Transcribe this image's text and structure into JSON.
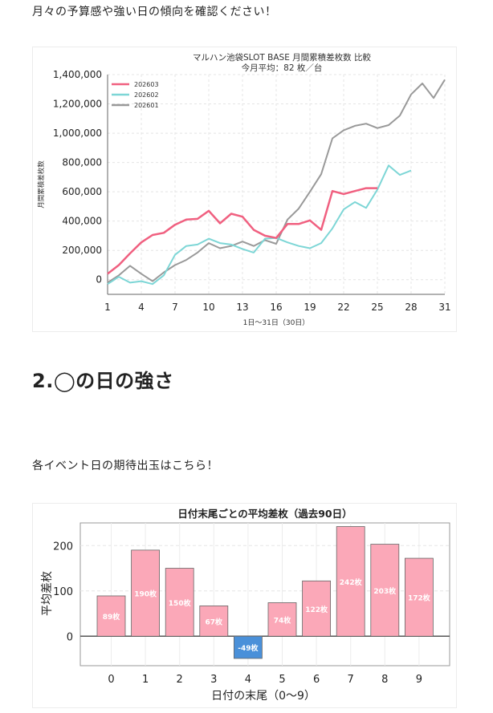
{
  "intro_text": "月々の予算感や強い日の傾向を確認ください！",
  "section_heading": "2.◯の日の強さ",
  "intro2_text": "各イベント日の期待出玉はこちら！",
  "chart_data": [
    {
      "type": "line",
      "title": "マルハン池袋SLOT BASE 月間累積差枚数 比較",
      "subtitle": "今月平均：82 枚／台",
      "xlabel": "1日〜31日（30日）",
      "ylabel": "月間累積差枚数",
      "xlim": [
        1,
        31
      ],
      "ylim": [
        -100000,
        1400000
      ],
      "xticks": [
        "1",
        "4",
        "7",
        "10",
        "13",
        "16",
        "19",
        "22",
        "25",
        "28",
        "31"
      ],
      "yticks": [
        "1,400,000",
        "1,200,000",
        "1,000,000",
        "800,000",
        "600,000",
        "400,000",
        "200,000",
        "0"
      ],
      "legend_position": "top-left",
      "grid": true,
      "series": [
        {
          "name": "202603",
          "color": "#f06080",
          "x": [
            1,
            2,
            3,
            4,
            5,
            6,
            7,
            8,
            9,
            10,
            11,
            12,
            13,
            14,
            15,
            16,
            17,
            18,
            19,
            20,
            21,
            22,
            23,
            24,
            25
          ],
          "values": [
            40000,
            100000,
            180000,
            255000,
            305000,
            320000,
            375000,
            410000,
            415000,
            470000,
            385000,
            450000,
            430000,
            340000,
            300000,
            285000,
            380000,
            380000,
            405000,
            340000,
            605000,
            585000,
            605000,
            625000,
            625000
          ]
        },
        {
          "name": "202602",
          "color": "#7dd6d6",
          "x": [
            1,
            2,
            3,
            4,
            5,
            6,
            7,
            8,
            9,
            10,
            11,
            12,
            13,
            14,
            15,
            16,
            17,
            18,
            19,
            20,
            21,
            22,
            23,
            24,
            25,
            26,
            27,
            28
          ],
          "values": [
            -30000,
            20000,
            -20000,
            -10000,
            -30000,
            30000,
            170000,
            230000,
            240000,
            280000,
            250000,
            240000,
            210000,
            185000,
            280000,
            285000,
            255000,
            230000,
            215000,
            250000,
            350000,
            480000,
            530000,
            490000,
            615000,
            780000,
            715000,
            745000
          ]
        },
        {
          "name": "202601",
          "color": "#999999",
          "x": [
            1,
            2,
            3,
            4,
            5,
            6,
            7,
            8,
            9,
            10,
            11,
            12,
            13,
            14,
            15,
            16,
            17,
            18,
            19,
            20,
            21,
            22,
            23,
            24,
            25,
            26,
            27,
            28,
            29,
            30,
            31
          ],
          "values": [
            -20000,
            30000,
            95000,
            40000,
            -10000,
            50000,
            100000,
            135000,
            185000,
            250000,
            215000,
            230000,
            260000,
            230000,
            270000,
            245000,
            410000,
            485000,
            600000,
            720000,
            965000,
            1020000,
            1050000,
            1065000,
            1035000,
            1055000,
            1120000,
            1265000,
            1340000,
            1240000,
            1365000
          ]
        }
      ]
    },
    {
      "type": "bar",
      "title": "日付末尾ごとの平均差枚（過去90日）",
      "xlabel": "日付の末尾（0〜9）",
      "ylabel": "平均差枚",
      "ylim": [
        -65,
        250
      ],
      "yticks": [
        "200",
        "100",
        "0"
      ],
      "grid": true,
      "categories": [
        "0",
        "1",
        "2",
        "3",
        "4",
        "5",
        "6",
        "7",
        "8",
        "9"
      ],
      "values": [
        89,
        190,
        150,
        67,
        -49,
        74,
        122,
        242,
        203,
        172
      ],
      "data_labels": [
        "89枚",
        "190枚",
        "150枚",
        "67枚",
        "-49枚",
        "74枚",
        "122枚",
        "242枚",
        "203枚",
        "172枚"
      ],
      "positive_color": "#fba8b8",
      "negative_color": "#4a90d9"
    }
  ]
}
